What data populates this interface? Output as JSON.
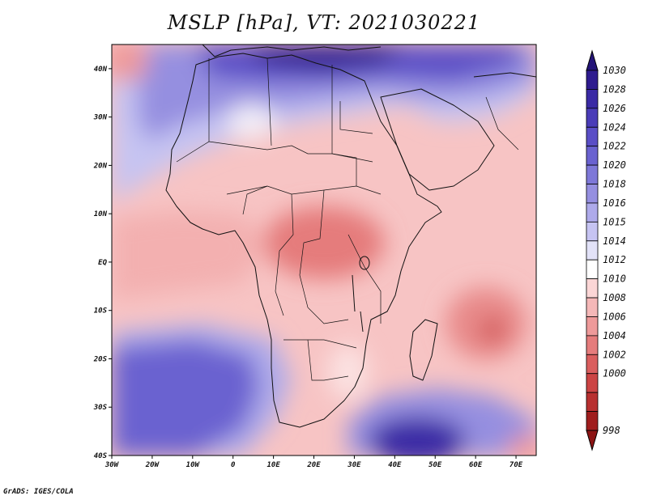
{
  "title": "MSLP [hPa], VT: 2021030221",
  "credit": "GrADS: IGES/COLA",
  "map": {
    "region": "Africa",
    "variable": "Mean sea level pressure",
    "units": "hPa",
    "lon_range": [
      -30,
      75
    ],
    "lat_range": [
      -40,
      45
    ],
    "lon_ticks": [
      {
        "value": -30,
        "label": "30W"
      },
      {
        "value": -20,
        "label": "20W"
      },
      {
        "value": -10,
        "label": "10W"
      },
      {
        "value": 0,
        "label": "0"
      },
      {
        "value": 10,
        "label": "10E"
      },
      {
        "value": 20,
        "label": "20E"
      },
      {
        "value": 30,
        "label": "30E"
      },
      {
        "value": 40,
        "label": "40E"
      },
      {
        "value": 50,
        "label": "50E"
      },
      {
        "value": 60,
        "label": "60E"
      },
      {
        "value": 70,
        "label": "70E"
      }
    ],
    "lat_ticks": [
      {
        "value": 40,
        "label": "40N"
      },
      {
        "value": 30,
        "label": "30N"
      },
      {
        "value": 20,
        "label": "20N"
      },
      {
        "value": 10,
        "label": "10N"
      },
      {
        "value": 0,
        "label": "EQ"
      },
      {
        "value": -10,
        "label": "10S"
      },
      {
        "value": -20,
        "label": "20S"
      },
      {
        "value": -30,
        "label": "30S"
      },
      {
        "value": -40,
        "label": "40S"
      }
    ]
  },
  "colorbar": {
    "labels": [
      "1030",
      "1028",
      "1026",
      "1024",
      "1022",
      "1020",
      "1018",
      "1016",
      "1015",
      "1014",
      "1012",
      "1010",
      "1008",
      "1006",
      "1004",
      "1002",
      "1000",
      "998"
    ],
    "colors": [
      "#2e1b8f",
      "#3a2aa5",
      "#4a3cb8",
      "#5a4ec6",
      "#6a62d0",
      "#7e78d8",
      "#958fe0",
      "#aeaaea",
      "#c6c4f2",
      "#e2e2f8",
      "#ffffff",
      "#fbd6d6",
      "#f5b8b8",
      "#ee9a9a",
      "#e57c7c",
      "#da5e5e",
      "#cc4444",
      "#b83030",
      "#a01e1e"
    ],
    "top_arrow_color": "#241478",
    "bottom_arrow_color": "#8c1414"
  }
}
